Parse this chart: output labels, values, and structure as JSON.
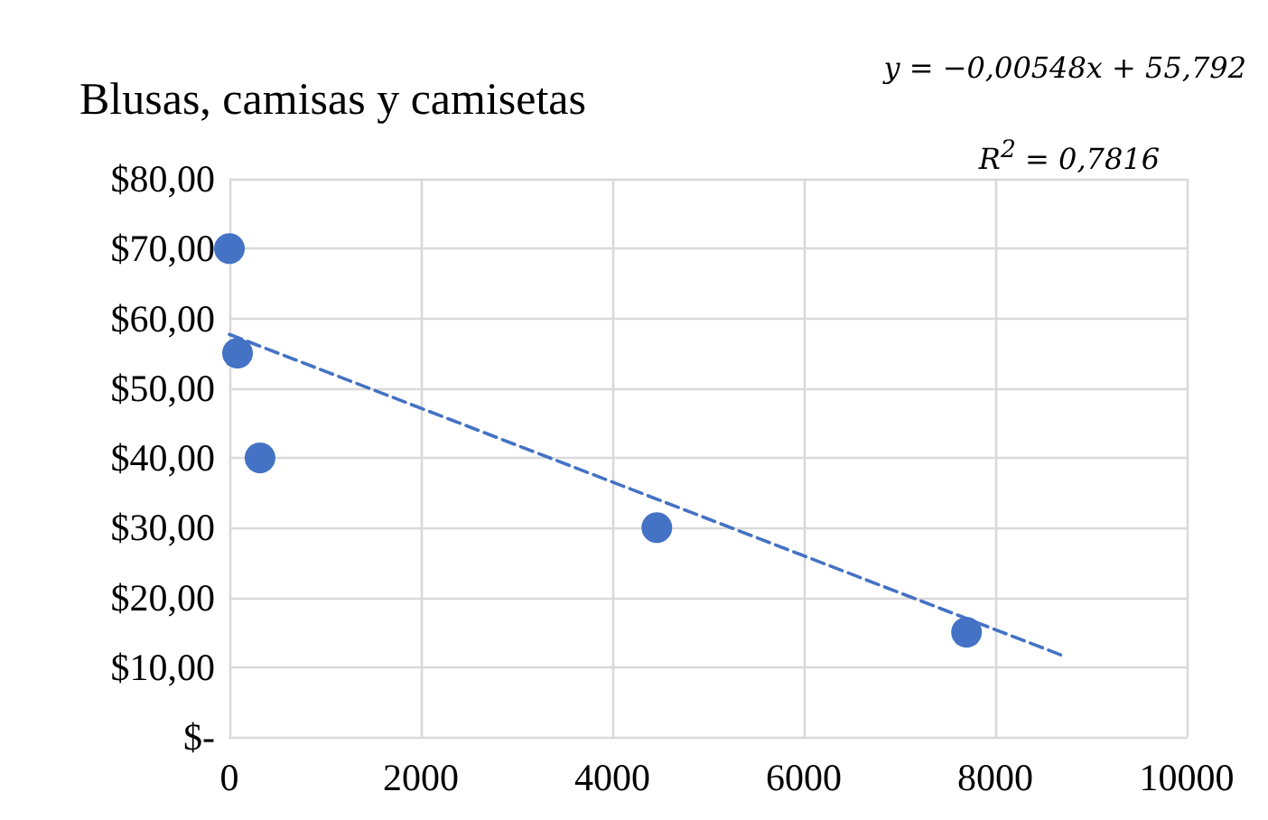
{
  "chart_data": {
    "type": "scatter",
    "title": "Blusas, camisas y camisetas",
    "annotations": [
      "y = −0,00548x + 55,792",
      "R$^{2}$ = 0,7816"
    ],
    "series": [
      {
        "color": "#4472c4",
        "x": [
          0,
          85,
          320,
          4465,
          7700
        ],
        "values": [
          70,
          55,
          40,
          30,
          15
        ],
        "marker": "circle"
      },
      {
        "type": "line",
        "color": "#4472c4",
        "x": [
          0,
          8734
        ],
        "values": [
          57.7,
          11.5
        ],
        "line_style": "dashed",
        "marker": "none"
      }
    ],
    "xlim": [
      0,
      10000
    ],
    "xticks": [
      0,
      2000,
      4000,
      6000,
      8000,
      10000
    ],
    "ylim": [
      0,
      80
    ],
    "yticks": [
      {
        "value": 0,
        "label": "$-"
      },
      {
        "value": 10,
        "label": "$10,00"
      },
      {
        "value": 20,
        "label": "$20,00"
      },
      {
        "value": 30,
        "label": "$30,00"
      },
      {
        "value": 40,
        "label": "$40,00"
      },
      {
        "value": 50,
        "label": "$50,00"
      },
      {
        "value": 60,
        "label": "$60,00"
      },
      {
        "value": 70,
        "label": "$70,00"
      },
      {
        "value": 80,
        "label": "$80,00"
      }
    ],
    "grid": true
  }
}
